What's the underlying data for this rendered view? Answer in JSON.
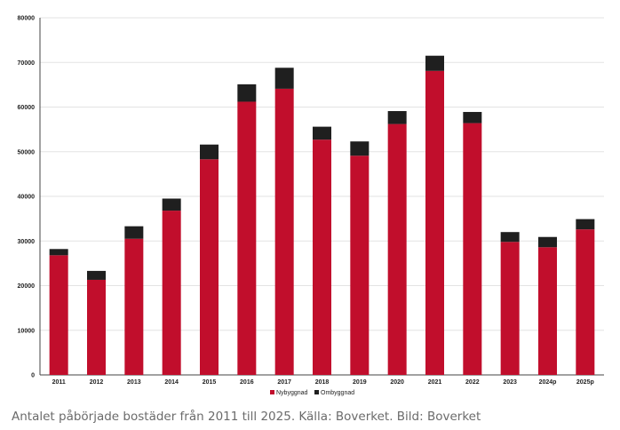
{
  "chart_data": {
    "type": "bar",
    "stacked": true,
    "categories": [
      "2011",
      "2012",
      "2013",
      "2014",
      "2015",
      "2016",
      "2017",
      "2018",
      "2019",
      "2020",
      "2021",
      "2022",
      "2023",
      "2024p",
      "2025p"
    ],
    "series": [
      {
        "name": "Nybyggnad",
        "color": "#c10e2c",
        "values": [
          26800,
          21300,
          30500,
          36800,
          48300,
          61200,
          64100,
          52700,
          49100,
          56200,
          68100,
          56400,
          29800,
          28600,
          32600
        ]
      },
      {
        "name": "Ombyggnad",
        "color": "#1f1f1f",
        "values": [
          1400,
          2000,
          2800,
          2700,
          3300,
          3900,
          4700,
          2900,
          3200,
          2900,
          3400,
          2500,
          2200,
          2300,
          2300
        ]
      }
    ],
    "yticks": [
      "0",
      "10000",
      "20000",
      "30000",
      "40000",
      "50000",
      "60000",
      "70000",
      "80000"
    ],
    "ylim": [
      0,
      80000
    ],
    "grid": true,
    "legend_position": "bottom-center",
    "title": "",
    "xlabel": "",
    "ylabel": ""
  },
  "caption": "Antalet påbörjade bostäder från 2011 till 2025. Källa: Boverket. Bild: Boverket"
}
